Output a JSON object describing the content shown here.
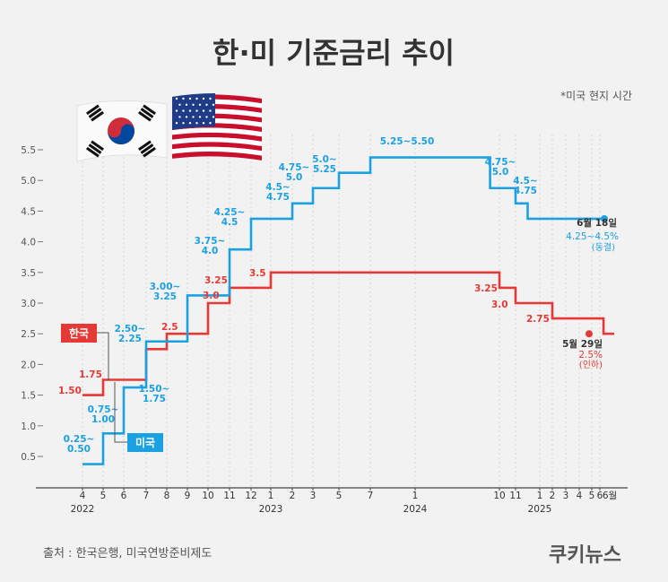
{
  "title": "한·미 기준금리 추이",
  "note": "*미국 현지 시간",
  "source": "출처 : 한국은행, 미국연방준비제도",
  "brand": "쿠키뉴스",
  "colors": {
    "background": "#f2f2f2",
    "korea": "#e53935",
    "us": "#1ba1e2",
    "axis": "#444444",
    "text": "#333333"
  },
  "icons": [
    "korea-flag-icon",
    "us-flag-icon"
  ],
  "legend": {
    "korea": "한국",
    "us": "미국"
  },
  "chart_data": {
    "type": "line",
    "step": true,
    "ylim": [
      0.25,
      5.75
    ],
    "yticks": [
      "0.5",
      "1.0",
      "1.5",
      "2.0",
      "2.5",
      "3.0",
      "3.5",
      "4.0",
      "4.5",
      "5.0",
      "5.5"
    ],
    "x_month_labels": [
      "4",
      "5",
      "6",
      "7",
      "8",
      "9",
      "10",
      "11",
      "12",
      "1",
      "2",
      "3",
      "5",
      "7",
      "1",
      "10",
      "11",
      "1",
      "2",
      "3",
      "4",
      "5",
      "6",
      "6월"
    ],
    "x_year_labels": [
      "2022",
      "2023",
      "2024",
      "2025"
    ],
    "series": [
      {
        "name": "한국",
        "color": "#e53935",
        "points": [
          {
            "date": "2022-04",
            "value": 1.5
          },
          {
            "date": "2022-05",
            "value": 1.75
          },
          {
            "date": "2022-07",
            "value": 2.25
          },
          {
            "date": "2022-08",
            "value": 2.5
          },
          {
            "date": "2022-10",
            "value": 3.0
          },
          {
            "date": "2022-11",
            "value": 3.25
          },
          {
            "date": "2023-01",
            "value": 3.5
          },
          {
            "date": "2024-10",
            "value": 3.25
          },
          {
            "date": "2024-11",
            "value": 3.0
          },
          {
            "date": "2025-02",
            "value": 2.75
          },
          {
            "date": "2025-05-29",
            "value": 2.5
          }
        ],
        "labels": [
          "1.50",
          "1.75",
          "2.5",
          "3.0",
          "3.25",
          "3.5",
          "3.25",
          "3.0",
          "2.75"
        ],
        "end_date": "5월 29일",
        "end_value": "2.5%",
        "end_note": "(인하)"
      },
      {
        "name": "미국",
        "color": "#1ba1e2",
        "points": [
          {
            "date": "2022-04",
            "value": 0.375
          },
          {
            "date": "2022-05",
            "value": 0.875
          },
          {
            "date": "2022-06",
            "value": 1.625
          },
          {
            "date": "2022-07",
            "value": 2.375
          },
          {
            "date": "2022-09",
            "value": 3.125
          },
          {
            "date": "2022-11",
            "value": 3.875
          },
          {
            "date": "2022-12",
            "value": 4.375
          },
          {
            "date": "2023-02",
            "value": 4.625
          },
          {
            "date": "2023-03",
            "value": 4.875
          },
          {
            "date": "2023-05",
            "value": 5.125
          },
          {
            "date": "2023-07",
            "value": 5.375
          },
          {
            "date": "2024-09",
            "value": 4.875
          },
          {
            "date": "2024-11",
            "value": 4.625
          },
          {
            "date": "2024-12",
            "value": 4.375
          },
          {
            "date": "2025-06-18",
            "value": 4.375
          }
        ],
        "labels": [
          [
            "0.25~",
            "0.50"
          ],
          [
            "0.75~",
            "1.00"
          ],
          [
            "1.50~",
            "1.75"
          ],
          [
            "2.50~",
            "2.25"
          ],
          [
            "3.00~",
            "3.25"
          ],
          [
            "3.75~",
            "4.0"
          ],
          [
            "4.25~",
            "4.5"
          ],
          [
            "4.5~",
            "4.75"
          ],
          [
            "4.75~",
            "5.0"
          ],
          [
            "5.0~",
            "5.25"
          ],
          [
            "5.25~5.50"
          ],
          [
            "4.75~",
            "5.0"
          ],
          [
            "4.5~",
            "4.75"
          ]
        ],
        "end_date": "6월 18일",
        "end_value": "4.25~4.5%",
        "end_note": "(동결)"
      }
    ]
  }
}
